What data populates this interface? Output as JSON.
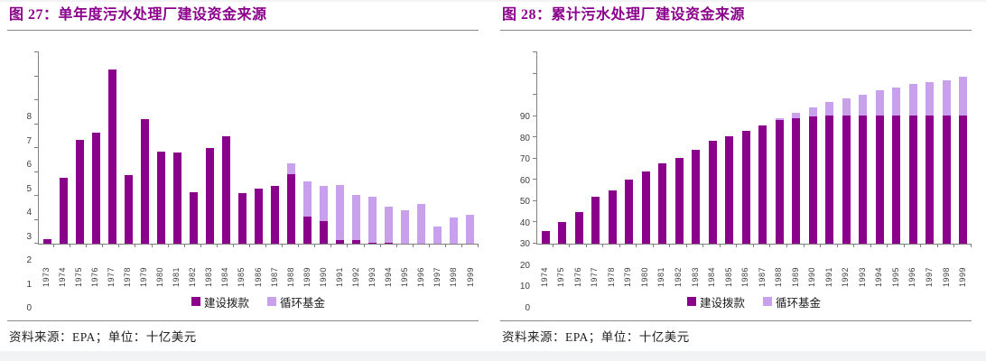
{
  "source_note": "资料来源：EPA；单位：十亿美元",
  "colors": {
    "grant": "#8B008B",
    "revolving": "#C9A0EC",
    "title": "#8B008B",
    "axis": "#808080",
    "tick_text": "#3d3d3d",
    "rule": "#8a8a8a",
    "page_bg": "#f2f3f4",
    "panel_bg": "#ffffff"
  },
  "chart_data": [
    {
      "figure_label": "图 27",
      "title": "图 27：单年度污水处理厂建设资金来源",
      "type": "bar",
      "stacked": true,
      "grid": false,
      "legend_position": "bottom",
      "unit": "十亿美元",
      "ylim": [
        0,
        8
      ],
      "ytick_step": 1,
      "categories": [
        "1973",
        "1974",
        "1975",
        "1976",
        "1977",
        "1978",
        "1979",
        "1980",
        "1981",
        "1982",
        "1983",
        "1984",
        "1985",
        "1986",
        "1987",
        "1988",
        "1989",
        "1990",
        "1991",
        "1992",
        "1993",
        "1994",
        "1995",
        "1996",
        "1997",
        "1998",
        "1999"
      ],
      "series": [
        {
          "name": "建设拨款",
          "color_key": "grant",
          "values": [
            0.2,
            2.75,
            4.35,
            4.65,
            7.3,
            2.85,
            5.2,
            3.85,
            3.8,
            2.15,
            4.0,
            4.5,
            2.1,
            2.3,
            2.4,
            2.9,
            1.15,
            0.95,
            0.15,
            0.15,
            0.05,
            0.05,
            0,
            0,
            0,
            0,
            0
          ]
        },
        {
          "name": "循环基金",
          "color_key": "revolving",
          "values": [
            0,
            0,
            0,
            0,
            0,
            0,
            0,
            0,
            0,
            0,
            0,
            0,
            0,
            0,
            0,
            0.45,
            1.45,
            1.45,
            2.3,
            1.9,
            1.9,
            1.5,
            1.4,
            1.65,
            0.7,
            1.1,
            1.2
          ]
        }
      ]
    },
    {
      "figure_label": "图 28",
      "title": "图 28：累计污水处理厂建设资金来源",
      "type": "bar",
      "stacked": true,
      "grid": false,
      "legend_position": "bottom",
      "unit": "十亿美元",
      "ylim": [
        0,
        90
      ],
      "ytick_step": 10,
      "categories": [
        "1974",
        "1975",
        "1976",
        "1977",
        "1978",
        "1979",
        "1980",
        "1981",
        "1982",
        "1983",
        "1984",
        "1985",
        "1986",
        "1987",
        "1988",
        "1989",
        "1990",
        "1991",
        "1992",
        "1993",
        "1994",
        "1995",
        "1996",
        "1997",
        "1998",
        "1999"
      ],
      "series": [
        {
          "name": "建设拨款",
          "color_key": "grant",
          "values": [
            6,
            10,
            15,
            22,
            25,
            30,
            34,
            38,
            40.5,
            44,
            48.5,
            50.5,
            53,
            55.5,
            58,
            59,
            60,
            60.5,
            60.5,
            60.5,
            60.5,
            60.5,
            60.5,
            60.5,
            60.5,
            60.5
          ]
        },
        {
          "name": "循环基金",
          "color_key": "revolving",
          "values": [
            0,
            0,
            0,
            0,
            0,
            0,
            0,
            0,
            0,
            0,
            0,
            0,
            0,
            0,
            1,
            2.5,
            4,
            6,
            8,
            9.5,
            11.5,
            13,
            14.5,
            15.5,
            16.5,
            18
          ]
        }
      ]
    }
  ]
}
